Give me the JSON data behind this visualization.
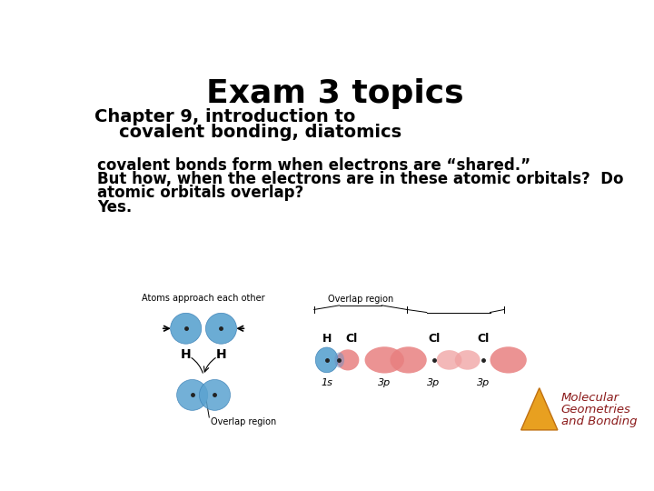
{
  "title": "Exam 3 topics",
  "title_fontsize": 26,
  "subtitle_line1": "Chapter 9, introduction to",
  "subtitle_line2": "    covalent bonding, diatomics",
  "subtitle_fontsize": 14,
  "body_line1": "covalent bonds form when electrons are “shared.”",
  "body_line2": "But how, when the electrons are in these atomic orbitals?  Do",
  "body_line3": "atomic orbitals overlap?",
  "body_line4": "Yes.",
  "body_fontsize": 12,
  "watermark_line1": "Molecular",
  "watermark_line2": "Geometries",
  "watermark_line3": "and Bonding",
  "watermark_color": "#8B1A1A",
  "watermark_fontsize": 9.5,
  "bg_color": "#ffffff",
  "text_color": "#000000",
  "blue_color": "#5BA3D0",
  "blue_dark": "#3A7FB5",
  "pink_color": "#E88080",
  "pink_light": "#F0A0A0",
  "dark_dot_color": "#222222",
  "gold_color": "#E8A020",
  "gold_dark": "#C07010"
}
